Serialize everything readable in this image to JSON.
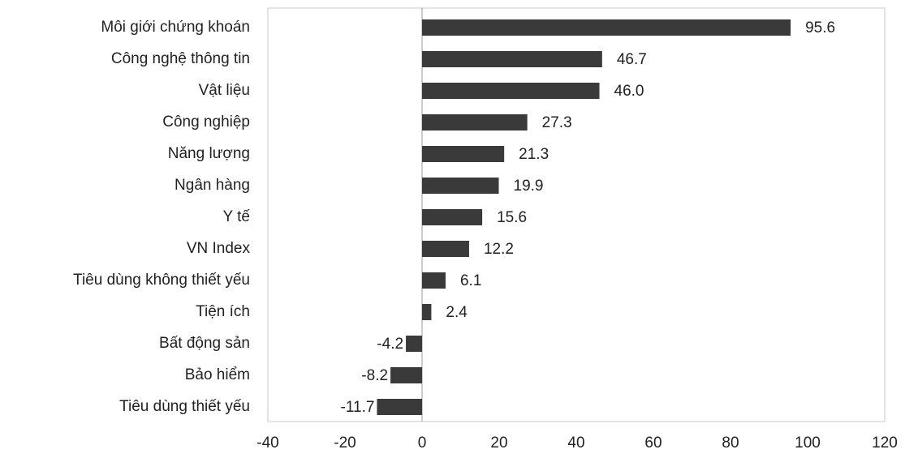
{
  "chart_data": {
    "type": "bar",
    "orientation": "horizontal",
    "categories": [
      "Môi giới chứng khoán",
      "Công nghệ thông tin",
      "Vật liệu",
      "Công nghiệp",
      "Năng lượng",
      "Ngân hàng",
      "Y tế",
      "VN Index",
      "Tiêu dùng không thiết yếu",
      "Tiện ích",
      "Bất động sản",
      "Bảo hiểm",
      "Tiêu dùng thiết yếu"
    ],
    "values": [
      95.6,
      46.7,
      46.0,
      27.3,
      21.3,
      19.9,
      15.6,
      12.2,
      6.1,
      2.4,
      -4.2,
      -8.2,
      -11.7
    ],
    "value_labels": [
      "95.6",
      "46.7",
      "46.0",
      "27.3",
      "21.3",
      "19.9",
      "15.6",
      "12.2",
      "6.1",
      "2.4",
      "-4.2",
      "-8.2",
      "-11.7"
    ],
    "xlim": [
      -40,
      120
    ],
    "x_ticks": [
      -40,
      -20,
      0,
      20,
      40,
      60,
      80,
      100,
      120
    ],
    "x_tick_labels": [
      "-40",
      "-20",
      "0",
      "20",
      "40",
      "60",
      "80",
      "100",
      "120"
    ],
    "bar_color": "#3a3a3a",
    "grid": false,
    "legend": "none"
  }
}
